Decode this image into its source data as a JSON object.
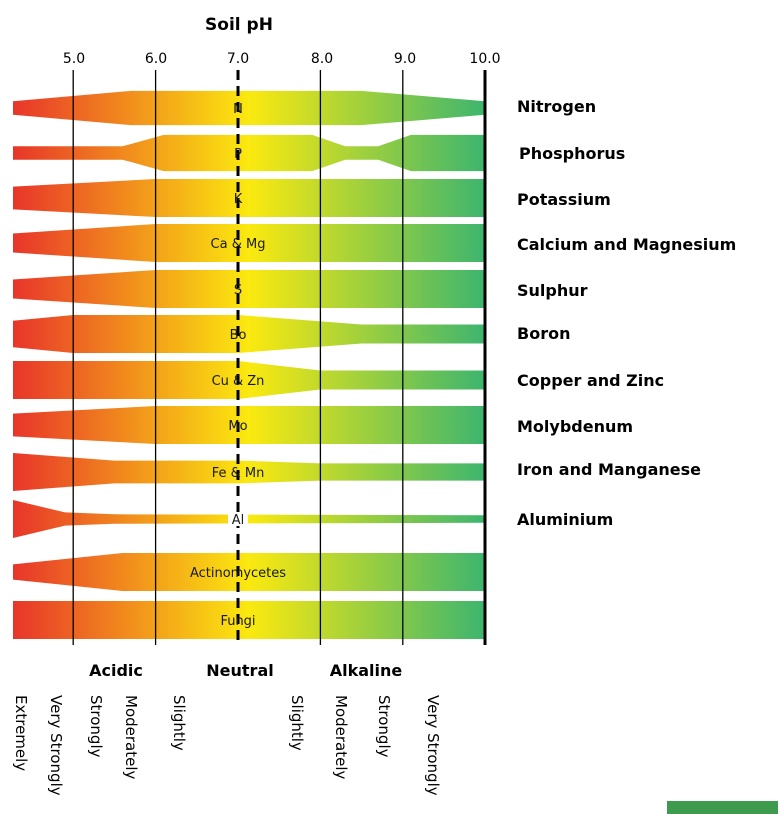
{
  "title": "Soil pH",
  "ticks": [
    "5.0",
    "6.0",
    "7.0",
    "8.0",
    "9.0",
    "10.0"
  ],
  "chart_data": {
    "type": "diagram",
    "title": "Soil pH",
    "x_ticks": [
      5.0,
      6.0,
      7.0,
      8.0,
      9.0,
      10.0
    ],
    "neutral_line": 7.0,
    "gradient": {
      "acidic": "#e8352a",
      "neutral": "#fbe90f",
      "alkaline": "#3db56e"
    },
    "bands": [
      {
        "label": "N",
        "name": "Nitrogen",
        "profile": [
          [
            4.3,
            0.35
          ],
          [
            5.7,
            0.9
          ],
          [
            8.5,
            0.9
          ],
          [
            10.0,
            0.35
          ]
        ]
      },
      {
        "label": "P",
        "name": "Phosphorus",
        "profile": [
          [
            4.3,
            0.35
          ],
          [
            5.6,
            0.35
          ],
          [
            6.1,
            0.95
          ],
          [
            7.9,
            0.95
          ],
          [
            8.3,
            0.35
          ],
          [
            8.7,
            0.35
          ],
          [
            9.1,
            0.95
          ],
          [
            10.0,
            0.95
          ]
        ]
      },
      {
        "label": "K",
        "name": "Potassium",
        "profile": [
          [
            4.3,
            0.6
          ],
          [
            6.0,
            1.0
          ],
          [
            10.0,
            1.0
          ]
        ]
      },
      {
        "label": "Ca & Mg",
        "name": "Calcium and Magnesium",
        "profile": [
          [
            4.3,
            0.5
          ],
          [
            6.0,
            1.0
          ],
          [
            10.0,
            1.0
          ]
        ]
      },
      {
        "label": "S",
        "name": "Sulphur",
        "profile": [
          [
            4.3,
            0.5
          ],
          [
            6.0,
            1.0
          ],
          [
            10.0,
            1.0
          ]
        ]
      },
      {
        "label": "Bo",
        "name": "Boron",
        "profile": [
          [
            4.3,
            0.7
          ],
          [
            5.0,
            1.0
          ],
          [
            7.0,
            1.0
          ],
          [
            8.5,
            0.5
          ],
          [
            10.0,
            0.5
          ]
        ]
      },
      {
        "label": "Cu & Zn",
        "name": "Copper and Zinc",
        "profile": [
          [
            4.3,
            1.0
          ],
          [
            7.0,
            1.0
          ],
          [
            8.0,
            0.5
          ],
          [
            10.0,
            0.5
          ]
        ]
      },
      {
        "label": "Mo",
        "name": "Molybdenum",
        "profile": [
          [
            4.3,
            0.6
          ],
          [
            6.0,
            1.0
          ],
          [
            10.0,
            1.0
          ]
        ]
      },
      {
        "label": "Fe & Mn",
        "name": "Iron and Manganese",
        "profile": [
          [
            4.3,
            1.0
          ],
          [
            5.5,
            0.6
          ],
          [
            7.0,
            0.6
          ],
          [
            8.0,
            0.45
          ],
          [
            10.0,
            0.45
          ]
        ]
      },
      {
        "label": "Al",
        "name": "Aluminium",
        "profile": [
          [
            4.3,
            1.0
          ],
          [
            4.9,
            0.35
          ],
          [
            5.5,
            0.25
          ],
          [
            10.0,
            0.2
          ]
        ]
      },
      {
        "label": "Actinomycetes",
        "name": "",
        "profile": [
          [
            4.3,
            0.4
          ],
          [
            5.6,
            1.0
          ],
          [
            10.0,
            1.0
          ]
        ]
      },
      {
        "label": "Fungi",
        "name": "",
        "profile": [
          [
            4.3,
            1.0
          ],
          [
            10.0,
            1.0
          ]
        ]
      }
    ]
  },
  "categories": [
    "Acidic",
    "Neutral",
    "Alkaline"
  ],
  "descriptors": [
    "Extremely",
    "Very Strongly",
    "Strongly",
    "Moderately",
    "Slightly",
    "Slightly",
    "Moderately",
    "Strongly",
    "Very Strongly"
  ],
  "legend_swatch_color": "#3e9b4d"
}
